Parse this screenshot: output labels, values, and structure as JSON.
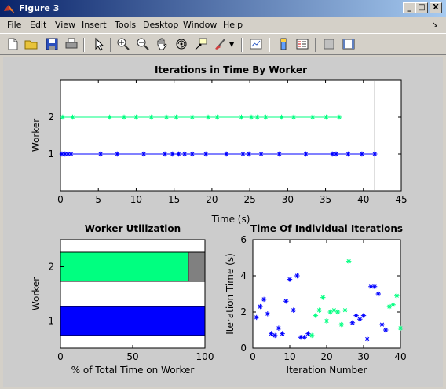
{
  "window": {
    "title": "Figure 3"
  },
  "window_buttons": [
    "_",
    "□",
    "X"
  ],
  "menu": [
    "File",
    "Edit",
    "View",
    "Insert",
    "Tools",
    "Desktop",
    "Window",
    "Help"
  ],
  "toolbar_icons": [
    "new-file-icon",
    "open-folder-icon",
    "save-icon",
    "print-icon",
    "pointer-icon",
    "zoom-in-icon",
    "zoom-out-icon",
    "pan-hand-icon",
    "rotate-3d-icon",
    "data-cursor-icon",
    "brush-icon",
    "link-plot-icon",
    "colorbar-icon",
    "legend-icon",
    "hide-plot-tools-icon",
    "show-plot-tools-icon"
  ],
  "colors": {
    "worker1": "#0000ff",
    "worker2": "#00ff80",
    "gray": "#808080"
  },
  "chart_data": [
    {
      "type": "scatter",
      "title": "Iterations in Time By Worker",
      "xlabel": "Time (s)",
      "ylabel": "Worker",
      "xlim": [
        0,
        45
      ],
      "ylim": [
        0,
        3
      ],
      "xticks": [
        "0",
        "5",
        "10",
        "15",
        "20",
        "25",
        "30",
        "35",
        "40",
        "45"
      ],
      "yticks": [
        "1",
        "2"
      ],
      "end_line_x": 41.5,
      "series": [
        {
          "name": "1",
          "y": 1,
          "line": [
            0,
            41.5
          ],
          "x": [
            0.2,
            0.6,
            1.0,
            1.4,
            5.3,
            7.5,
            11.0,
            13.8,
            14.8,
            15.6,
            16.4,
            17.4,
            19.2,
            21.9,
            24.1,
            24.9,
            26.5,
            28.9,
            32.4,
            35.9,
            36.4,
            38.0,
            39.8,
            41.5
          ]
        },
        {
          "name": "2",
          "y": 2,
          "line": [
            0,
            37
          ],
          "x": [
            0.3,
            1.6,
            6.5,
            8.4,
            10.0,
            12.0,
            14.0,
            15.3,
            17.4,
            19.5,
            20.7,
            23.9,
            25.2,
            26.0,
            27.1,
            29.2,
            30.8,
            33.3,
            35.1,
            36.8
          ]
        }
      ]
    },
    {
      "type": "bar",
      "title": "Worker Utilization",
      "xlabel": "% of Total Time on Worker",
      "ylabel": "Worker",
      "xlim": [
        0,
        100
      ],
      "xticks": [
        "0",
        "50",
        "100"
      ],
      "categories": [
        "1",
        "2"
      ],
      "values": [
        100,
        88.5
      ]
    },
    {
      "type": "scatter",
      "title": "Time Of Individual Iterations",
      "xlabel": "Iteration Number",
      "ylabel": "Iteration Time (s)",
      "xlim": [
        0,
        40
      ],
      "ylim": [
        0,
        6
      ],
      "xticks": [
        "0",
        "10",
        "20",
        "30",
        "40"
      ],
      "yticks": [
        "0",
        "2",
        "4",
        "6"
      ],
      "series": [
        {
          "name": "1",
          "points": [
            [
              1,
              1.7
            ],
            [
              2,
              2.3
            ],
            [
              3,
              2.7
            ],
            [
              4,
              1.9
            ],
            [
              5,
              0.8
            ],
            [
              6,
              0.7
            ],
            [
              7,
              1.1
            ],
            [
              8,
              0.8
            ],
            [
              9,
              2.6
            ],
            [
              10,
              3.8
            ],
            [
              11,
              2.1
            ],
            [
              12,
              4.0
            ],
            [
              13,
              0.6
            ],
            [
              14,
              0.6
            ],
            [
              15,
              0.8
            ],
            [
              27,
              1.4
            ],
            [
              28,
              1.8
            ],
            [
              29,
              1.6
            ],
            [
              30,
              1.8
            ],
            [
              31,
              0.5
            ],
            [
              32,
              3.4
            ],
            [
              33,
              3.4
            ],
            [
              34,
              3.0
            ],
            [
              35,
              1.3
            ],
            [
              36,
              1.0
            ]
          ]
        },
        {
          "name": "2",
          "points": [
            [
              16,
              0.7
            ],
            [
              17,
              1.8
            ],
            [
              18,
              2.1
            ],
            [
              19,
              2.8
            ],
            [
              20,
              1.5
            ],
            [
              21,
              2.0
            ],
            [
              22,
              2.1
            ],
            [
              23,
              2.0
            ],
            [
              24,
              1.3
            ],
            [
              25,
              2.1
            ],
            [
              26,
              4.8
            ],
            [
              37,
              2.3
            ],
            [
              38,
              2.4
            ],
            [
              39,
              2.9
            ],
            [
              40,
              1.1
            ]
          ]
        }
      ]
    }
  ]
}
